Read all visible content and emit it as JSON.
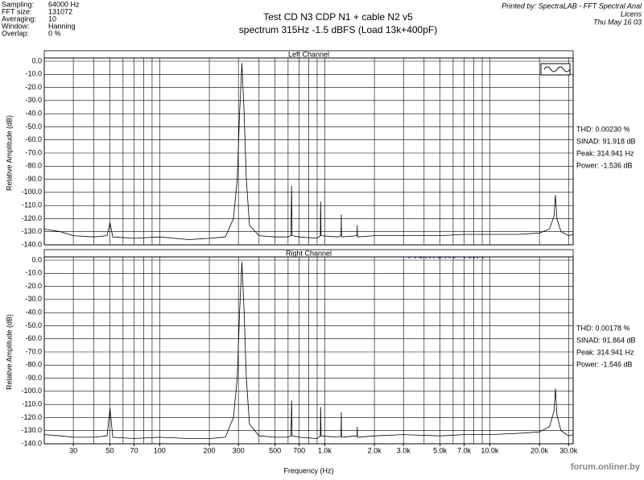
{
  "header": {
    "fields": [
      [
        "Sampling:",
        "64000 Hz"
      ],
      [
        "FFT size:",
        "131072"
      ],
      [
        "Averaging:",
        "10"
      ],
      [
        "Window:",
        "Hanning"
      ],
      [
        "Overlap:",
        "0 %"
      ]
    ],
    "printed": [
      "Printed by: SpectraLAB - FFT Spectral Anal",
      "Licens",
      "Thu May 16 03"
    ],
    "watermark": "Remont_NIK",
    "footer": "forum.onliner.by"
  },
  "chart_data": [
    {
      "type": "line",
      "title": "Test CD N3  CDP N1 + cable N2  v5",
      "subtitle": "spectrum 315Hz -1.5 dBFS (Load 13k+400pF)",
      "panel_title": "Left Channel",
      "y_label": "Relative Amplitude (dB)",
      "log_x": true,
      "xlim": [
        20,
        32000
      ],
      "ylim": [
        -140,
        0
      ],
      "xgrid": [
        20,
        30,
        40,
        50,
        60,
        70,
        80,
        90,
        100,
        200,
        300,
        400,
        500,
        600,
        700,
        800,
        900,
        1000,
        2000,
        3000,
        4000,
        5000,
        6000,
        7000,
        8000,
        9000,
        10000,
        20000,
        30000
      ],
      "yticks": [
        {
          "value": 0,
          "label": "0.0"
        },
        {
          "value": -10,
          "label": "-10.0"
        },
        {
          "value": -20,
          "label": "-20.0"
        },
        {
          "value": -30,
          "label": "-30.0"
        },
        {
          "value": -40,
          "label": "-40.0"
        },
        {
          "value": -50,
          "label": "-50.0"
        },
        {
          "value": -60,
          "label": "-60.0"
        },
        {
          "value": -70,
          "label": "-70.0"
        },
        {
          "value": -80,
          "label": "-80.0"
        },
        {
          "value": -90,
          "label": "-90.0"
        },
        {
          "value": -100,
          "label": "-100.0"
        },
        {
          "value": -110,
          "label": "-110.0"
        },
        {
          "value": -120,
          "label": "-120.0"
        },
        {
          "value": -130,
          "label": "-130.0"
        },
        {
          "value": -140,
          "label": "-140.0"
        }
      ],
      "annotations": [
        "THD: 0.00230 %",
        "SINAD: 91.918 dB",
        "Peak: 314.941 Hz",
        "Power: -1.536 dB"
      ],
      "x": [
        20,
        25,
        30,
        40,
        48,
        50,
        52,
        70,
        100,
        150,
        200,
        250,
        280,
        295,
        305,
        315,
        325,
        335,
        350,
        400,
        500,
        600,
        625,
        630,
        635,
        700,
        900,
        940,
        945,
        950,
        1200,
        1255,
        1260,
        1265,
        1570,
        1575,
        1580,
        2000,
        3000,
        5000,
        7000,
        10000,
        15000,
        20000,
        23000,
        24500,
        25000,
        25500,
        27000,
        30000,
        32000
      ],
      "series": [
        {
          "color": "#000000",
          "values": [
            -128,
            -130,
            -133,
            -134,
            -133,
            -123,
            -134,
            -135,
            -134,
            -136,
            -135,
            -134,
            -120,
            -90,
            -40,
            -1.5,
            -40,
            -90,
            -125,
            -133,
            -134,
            -134,
            -133,
            -95,
            -133,
            -134,
            -135,
            -133,
            -107,
            -133,
            -134,
            -133,
            -117,
            -134,
            -133,
            -125,
            -134,
            -133,
            -133,
            -133,
            -132,
            -132,
            -132,
            -131,
            -128,
            -118,
            -102,
            -120,
            -130,
            -133,
            -132
          ]
        }
      ]
    },
    {
      "type": "line",
      "panel_title": "Right Channel",
      "y_label": "Relative Amplitude (dB)",
      "x_label": "Frequency (Hz)",
      "log_x": true,
      "xlim": [
        20,
        32000
      ],
      "ylim": [
        -140,
        0
      ],
      "xgrid": [
        20,
        30,
        40,
        50,
        60,
        70,
        80,
        90,
        100,
        200,
        300,
        400,
        500,
        600,
        700,
        800,
        900,
        1000,
        2000,
        3000,
        4000,
        5000,
        6000,
        7000,
        8000,
        9000,
        10000,
        20000,
        30000
      ],
      "xticks": [
        30,
        50,
        70,
        100,
        200,
        300,
        500,
        700,
        {
          "value": 1000,
          "label": "1.0k"
        },
        {
          "value": 2000,
          "label": "2.0k"
        },
        {
          "value": 3000,
          "label": "3.0k"
        },
        {
          "value": 5000,
          "label": "5.0k"
        },
        {
          "value": 7000,
          "label": "7.0k"
        },
        {
          "value": 10000,
          "label": "10.0k"
        },
        {
          "value": 20000,
          "label": "20.0k"
        },
        {
          "value": 30000,
          "label": "30.0k"
        }
      ],
      "yticks": [
        {
          "value": 0,
          "label": "0.0"
        },
        {
          "value": -10,
          "label": "-10.0"
        },
        {
          "value": -20,
          "label": "-20.0"
        },
        {
          "value": -30,
          "label": "-30.0"
        },
        {
          "value": -40,
          "label": "-40.0"
        },
        {
          "value": -50,
          "label": "-50.0"
        },
        {
          "value": -60,
          "label": "-60.0"
        },
        {
          "value": -70,
          "label": "-70.0"
        },
        {
          "value": -80,
          "label": "-80.0"
        },
        {
          "value": -90,
          "label": "-90.0"
        },
        {
          "value": -100,
          "label": "-100.0"
        },
        {
          "value": -110,
          "label": "-110.0"
        },
        {
          "value": -120,
          "label": "-120.0"
        },
        {
          "value": -130,
          "label": "-130.0"
        },
        {
          "value": -140,
          "label": "-140.0"
        }
      ],
      "annotations": [
        "THD: 0.00178 %",
        "SINAD: 91.864 dB",
        "Peak: 314.941 Hz",
        "Power: -1.546 dB"
      ],
      "x": [
        20,
        25,
        30,
        40,
        48,
        50,
        52,
        70,
        100,
        150,
        200,
        250,
        280,
        295,
        305,
        315,
        325,
        335,
        350,
        400,
        500,
        600,
        625,
        630,
        635,
        700,
        900,
        940,
        945,
        950,
        1200,
        1255,
        1260,
        1265,
        1570,
        1575,
        1580,
        2000,
        3000,
        5000,
        7000,
        10000,
        15000,
        20000,
        23000,
        24500,
        25000,
        25500,
        27000,
        30000,
        32000
      ],
      "series": [
        {
          "color": "#000000",
          "values": [
            -133,
            -134,
            -135,
            -135,
            -134,
            -113,
            -135,
            -136,
            -135,
            -136,
            -136,
            -135,
            -120,
            -90,
            -40,
            -1.5,
            -40,
            -90,
            -125,
            -134,
            -135,
            -135,
            -134,
            -107,
            -134,
            -135,
            -136,
            -134,
            -112,
            -134,
            -135,
            -134,
            -116,
            -135,
            -134,
            -127,
            -135,
            -134,
            -133,
            -134,
            -133,
            -133,
            -132,
            -131,
            -127,
            -115,
            -98,
            -118,
            -130,
            -134,
            -133
          ]
        }
      ]
    }
  ]
}
